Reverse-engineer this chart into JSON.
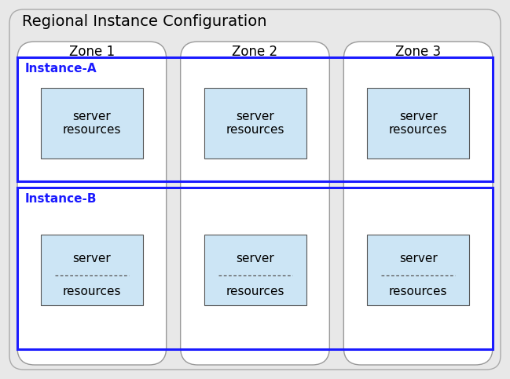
{
  "title": "Regional Instance Configuration",
  "title_fontsize": 14,
  "background_color": "#e8e8e8",
  "zone_bg_color": "#ffffff",
  "zone_edge_color": "#999999",
  "zone_labels": [
    "Zone 1",
    "Zone 2",
    "Zone 3"
  ],
  "zone_label_fontsize": 12,
  "instance_box_color": "#1a1aff",
  "instance_A_label": "Instance-A",
  "instance_B_label": "Instance-B",
  "instance_label_fontsize": 11,
  "server_box_fill": "#cce5f5",
  "server_box_edge": "#555555",
  "server_label_A": "server\nresources",
  "server_label_B_top": "server",
  "server_label_B_bot": "resources",
  "server_label_fontsize": 11,
  "dashed_line_color": "#555555",
  "fig_width": 6.49,
  "fig_height": 4.83,
  "dpi": 100
}
